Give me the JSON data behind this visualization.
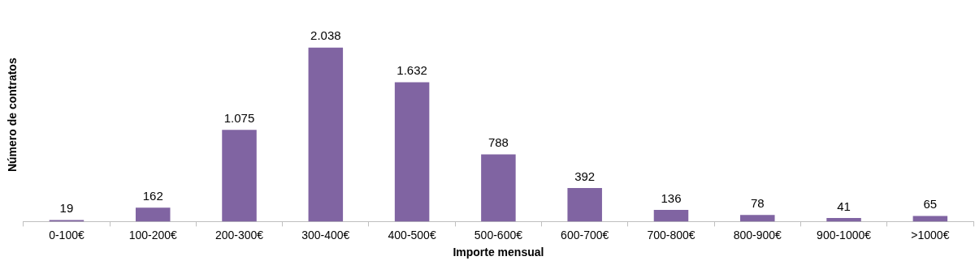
{
  "chart_data": {
    "type": "bar",
    "xlabel": "Importe mensual",
    "ylabel": "Número de contratos",
    "categories": [
      "0-100€",
      "100-200€",
      "200-300€",
      "300-400€",
      "400-500€",
      "500-600€",
      "600-700€",
      "700-800€",
      "800-900€",
      "900-1000€",
      ">1000€"
    ],
    "values": [
      19,
      162,
      1075,
      2038,
      1632,
      788,
      392,
      136,
      78,
      41,
      65
    ],
    "value_labels": [
      "19",
      "162",
      "1.075",
      "2.038",
      "1.632",
      "788",
      "392",
      "136",
      "78",
      "41",
      "65"
    ],
    "color": "#8064a2",
    "grid": false,
    "legend": false
  }
}
